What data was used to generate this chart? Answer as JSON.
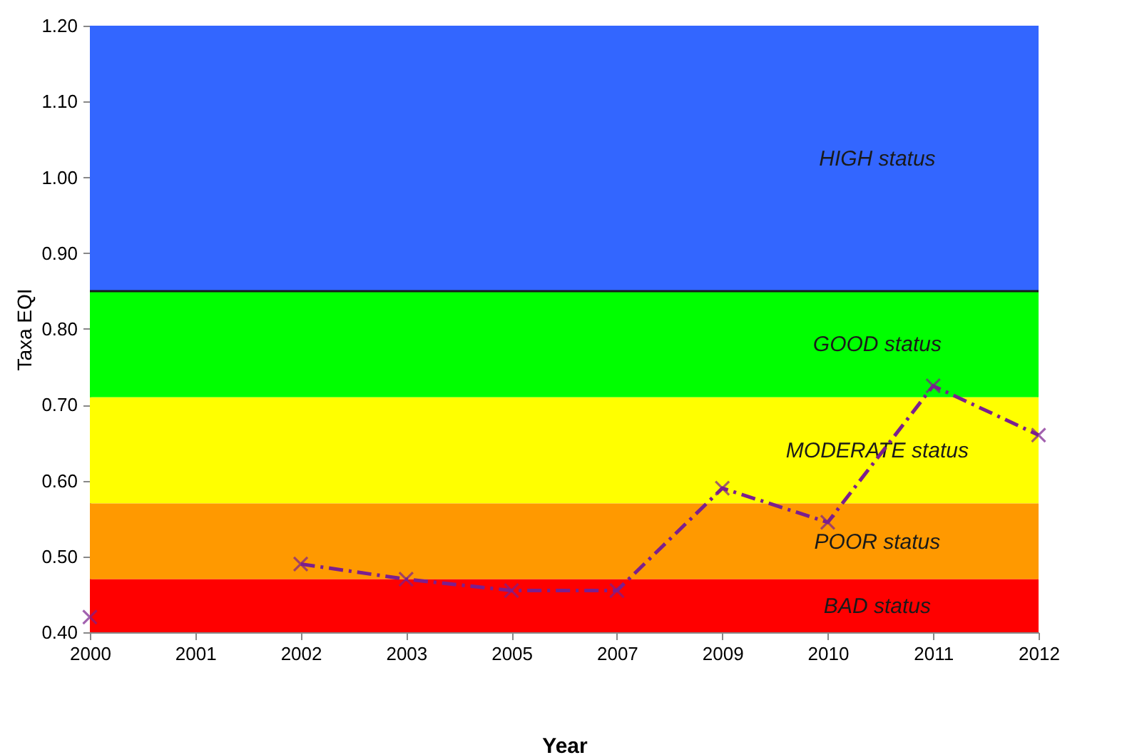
{
  "chart_data": {
    "type": "line",
    "xlabel": "Year",
    "ylabel": "Taxa EQI",
    "categories": [
      "2000",
      "2001",
      "2002",
      "2003",
      "2005",
      "2007",
      "2009",
      "2010",
      "2011",
      "2012"
    ],
    "series": [
      {
        "color": "#7b1f8e",
        "values": [
          0.42,
          null,
          0.49,
          0.47,
          0.455,
          0.455,
          0.59,
          0.545,
          0.725,
          0.66
        ]
      }
    ],
    "ylim": [
      0.4,
      1.2
    ],
    "yticks": [
      {
        "value": 0.4,
        "label": "0.40"
      },
      {
        "value": 0.5,
        "label": "0.50"
      },
      {
        "value": 0.6,
        "label": "0.60"
      },
      {
        "value": 0.7,
        "label": "0.70"
      },
      {
        "value": 0.8,
        "label": "0.80"
      },
      {
        "value": 0.9,
        "label": "0.90"
      },
      {
        "value": 1.0,
        "label": "1.00"
      },
      {
        "value": 1.1,
        "label": "1.10"
      },
      {
        "value": 1.2,
        "label": "1.20"
      }
    ],
    "bands": [
      {
        "axis": "y",
        "from": 0.85,
        "to": 1.2,
        "label": "HIGH status",
        "color": "#3366ff"
      },
      {
        "axis": "y",
        "from": 0.71,
        "to": 0.85,
        "label": "GOOD status",
        "color": "#00ff00"
      },
      {
        "axis": "y",
        "from": 0.57,
        "to": 0.71,
        "label": "MODERATE status",
        "color": "#ffff00"
      },
      {
        "axis": "y",
        "from": 0.47,
        "to": 0.57,
        "label": "POOR status",
        "color": "#ff9900"
      },
      {
        "axis": "y",
        "from": 0.4,
        "to": 0.47,
        "label": "BAD status",
        "color": "#ff0000"
      }
    ],
    "ref_lines": [
      {
        "axis": "y",
        "value": 0.85,
        "color": "#1a1a1a"
      }
    ],
    "grid": false,
    "marker": "cross",
    "line_style": "dashed"
  }
}
